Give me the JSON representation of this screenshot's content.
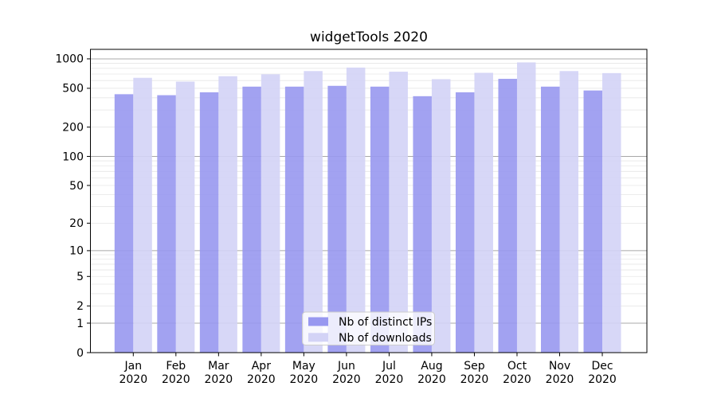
{
  "chart_data": {
    "type": "bar",
    "title": "widgetTools 2020",
    "categories": [
      "Jan",
      "Feb",
      "Mar",
      "Apr",
      "May",
      "Jun",
      "Jul",
      "Aug",
      "Sep",
      "Oct",
      "Nov",
      "Dec"
    ],
    "x_sublabel": "2020",
    "series": [
      {
        "name": "Nb of distinct IPs",
        "color": "#9898f0",
        "values": [
          435,
          425,
          455,
          520,
          520,
          530,
          520,
          415,
          455,
          625,
          520,
          475
        ]
      },
      {
        "name": "Nb of downloads",
        "color": "#d3d3f6",
        "values": [
          640,
          585,
          665,
          695,
          750,
          815,
          740,
          620,
          720,
          920,
          750,
          715
        ]
      }
    ],
    "yscale": "log1p",
    "yticks": [
      0,
      1,
      2,
      5,
      10,
      20,
      50,
      100,
      200,
      500,
      1000
    ],
    "ylim": [
      0,
      1000
    ],
    "grid": true,
    "legend_position": "lower center",
    "colors": {
      "grid_major": "#a8a8a8",
      "grid_minor": "#e6e6e6",
      "axis": "#000000",
      "legend_border": "#cccccc",
      "background": "#ffffff"
    }
  }
}
